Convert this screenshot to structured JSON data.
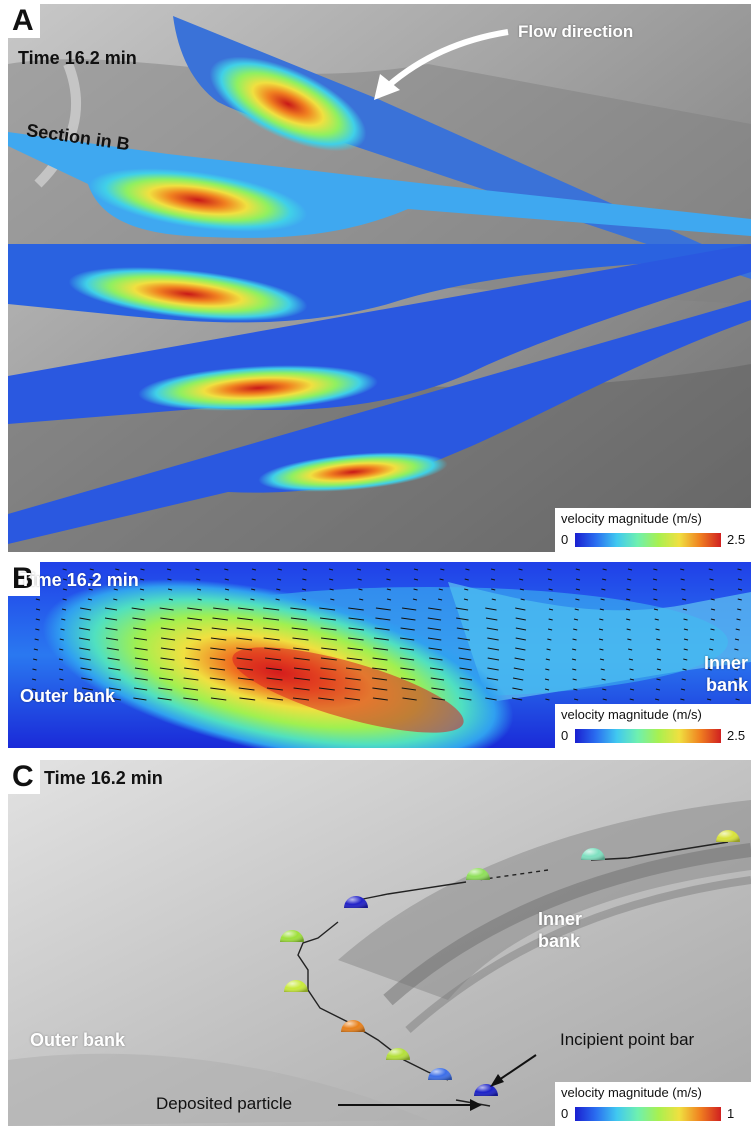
{
  "panel_a": {
    "letter": "A",
    "time": "Time 16.2 min",
    "flow_label": "Flow direction",
    "section_label": "Section in B",
    "legend": {
      "title": "velocity magnitude (m/s)",
      "min": "0",
      "max": "2.5"
    }
  },
  "panel_b": {
    "letter": "B",
    "time": "Time 16.2 min",
    "outer_bank": "Outer bank",
    "inner_bank": "Inner bank",
    "legend": {
      "title": "velocity magnitude (m/s)",
      "min": "0",
      "max": "2.5"
    }
  },
  "panel_c": {
    "letter": "C",
    "time": "Time 16.2 min",
    "inner_bank": "Inner bank",
    "outer_bank": "Outer bank",
    "incipient_point_bar": "Incipient point bar",
    "deposited_particle": "Deposited particle",
    "legend": {
      "title": "velocity magnitude (m/s)",
      "min": "0",
      "max": "1"
    },
    "particle_colors": [
      "#d8e23a",
      "#7ee0c0",
      "#8fe05a",
      "#2020c8",
      "#9ee03a",
      "#c8ea3a",
      "#e8801a",
      "#b4e03a",
      "#3c6ee8",
      "#1a20c8"
    ]
  },
  "colors": {
    "cmap": [
      "#1a1fd0",
      "#2a6ef0",
      "#40c8f0",
      "#6ef0b0",
      "#a8f050",
      "#f0e040",
      "#f08020",
      "#d02020"
    ],
    "terrain": "#8a8a8a"
  }
}
